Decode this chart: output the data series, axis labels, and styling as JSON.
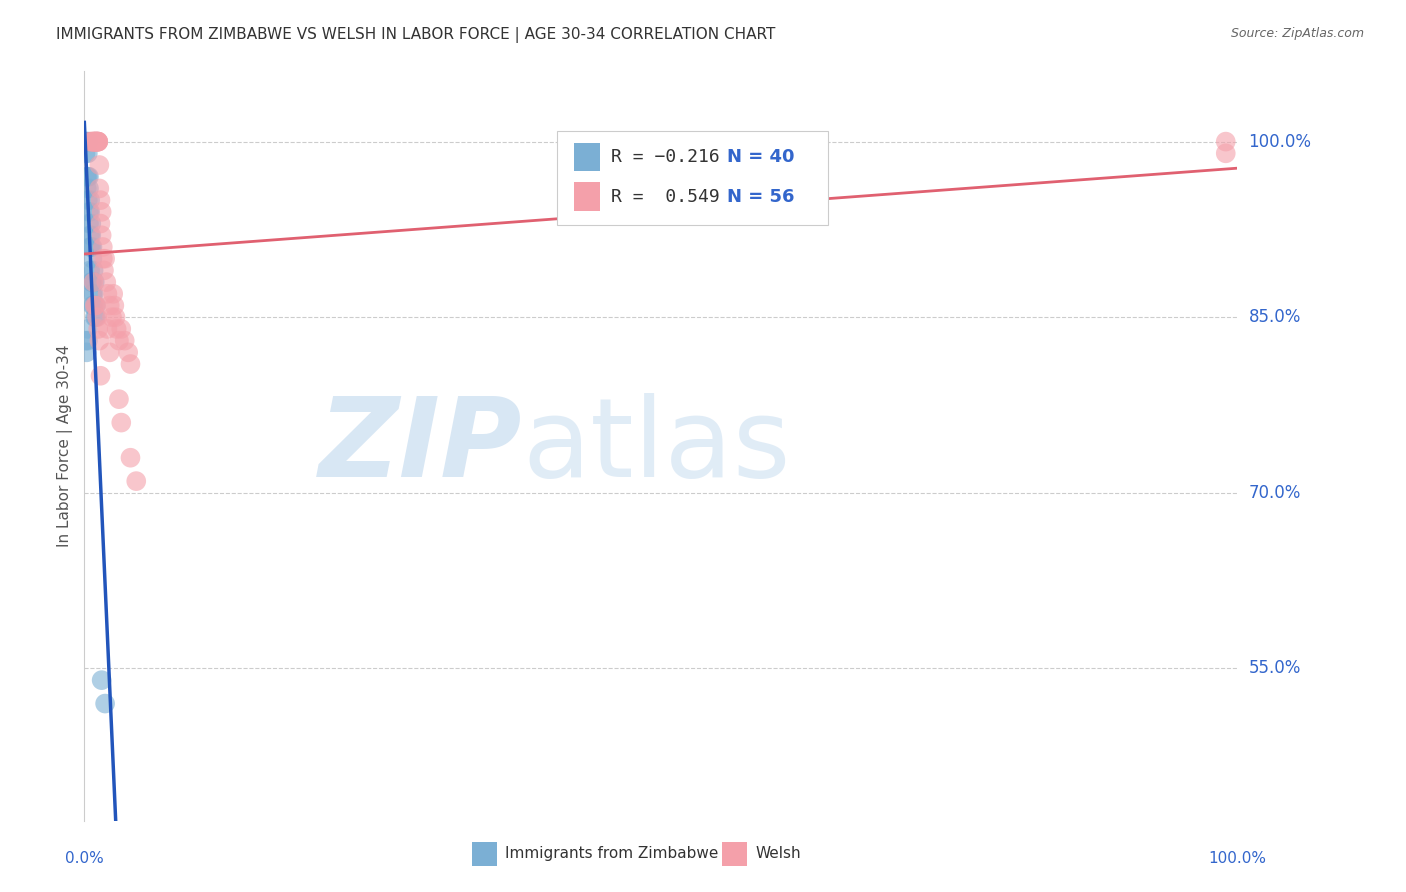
{
  "title": "IMMIGRANTS FROM ZIMBABWE VS WELSH IN LABOR FORCE | AGE 30-34 CORRELATION CHART",
  "source": "Source: ZipAtlas.com",
  "ylabel": "In Labor Force | Age 30-34",
  "ytick_labels": [
    "100.0%",
    "85.0%",
    "70.0%",
    "55.0%"
  ],
  "ytick_values": [
    1.0,
    0.85,
    0.7,
    0.55
  ],
  "xlim": [
    0.0,
    1.0
  ],
  "ylim": [
    0.42,
    1.06
  ],
  "legend_r1": "R = −0.216",
  "legend_n1": "N = 40",
  "legend_r2": "R =  0.549",
  "legend_n2": "N = 56",
  "color_blue": "#7BAFD4",
  "color_pink": "#F4A0AA",
  "color_blue_line": "#2255BB",
  "color_pink_line": "#E06070",
  "color_dash": "#AACCEE",
  "blue_x": [
    0.001,
    0.001,
    0.002,
    0.002,
    0.002,
    0.003,
    0.003,
    0.003,
    0.003,
    0.004,
    0.004,
    0.004,
    0.004,
    0.005,
    0.005,
    0.005,
    0.005,
    0.005,
    0.006,
    0.006,
    0.006,
    0.006,
    0.007,
    0.007,
    0.007,
    0.007,
    0.007,
    0.008,
    0.008,
    0.008,
    0.009,
    0.009,
    0.01,
    0.01,
    0.015,
    0.018,
    0.001,
    0.002,
    0.003,
    0.003
  ],
  "blue_y": [
    1.0,
    0.99,
    1.0,
    0.97,
    0.96,
    1.0,
    0.99,
    0.97,
    0.95,
    0.97,
    0.96,
    0.94,
    0.93,
    0.95,
    0.94,
    0.92,
    0.91,
    0.89,
    0.93,
    0.92,
    0.91,
    0.88,
    0.91,
    0.9,
    0.88,
    0.87,
    0.86,
    0.89,
    0.87,
    0.86,
    0.88,
    0.85,
    0.86,
    0.85,
    0.54,
    0.52,
    0.83,
    0.82,
    0.84,
    0.83
  ],
  "pink_x": [
    0.005,
    0.006,
    0.007,
    0.008,
    0.008,
    0.008,
    0.009,
    0.009,
    0.01,
    0.01,
    0.01,
    0.01,
    0.011,
    0.011,
    0.012,
    0.012,
    0.012,
    0.012,
    0.013,
    0.013,
    0.014,
    0.014,
    0.015,
    0.015,
    0.016,
    0.016,
    0.017,
    0.018,
    0.019,
    0.02,
    0.022,
    0.024,
    0.025,
    0.026,
    0.027,
    0.028,
    0.03,
    0.032,
    0.035,
    0.038,
    0.04,
    0.008,
    0.009,
    0.01,
    0.011,
    0.012,
    0.013,
    0.014,
    0.02,
    0.022,
    0.03,
    0.032,
    0.04,
    0.045,
    0.99,
    0.99
  ],
  "pink_y": [
    1.0,
    1.0,
    1.0,
    1.0,
    1.0,
    1.0,
    1.0,
    1.0,
    1.0,
    1.0,
    1.0,
    1.0,
    1.0,
    1.0,
    1.0,
    1.0,
    1.0,
    1.0,
    0.98,
    0.96,
    0.95,
    0.93,
    0.94,
    0.92,
    0.91,
    0.9,
    0.89,
    0.9,
    0.88,
    0.87,
    0.86,
    0.85,
    0.87,
    0.86,
    0.85,
    0.84,
    0.83,
    0.84,
    0.83,
    0.82,
    0.81,
    0.88,
    0.86,
    0.86,
    0.85,
    0.84,
    0.83,
    0.8,
    0.84,
    0.82,
    0.78,
    0.76,
    0.73,
    0.71,
    1.0,
    0.99
  ]
}
